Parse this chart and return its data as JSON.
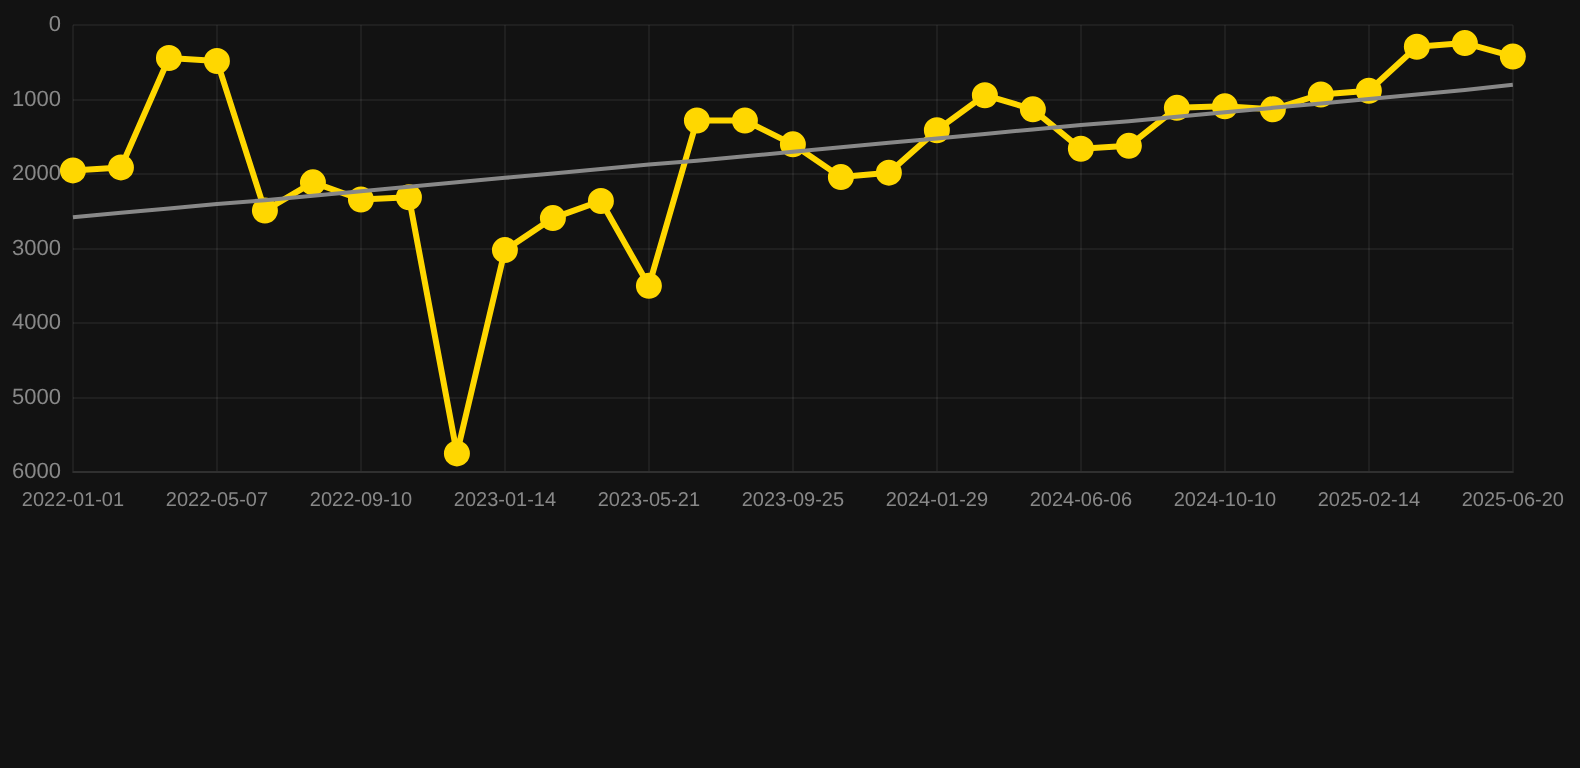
{
  "chart_data": {
    "type": "line",
    "categories": [
      "2022-01-01",
      null,
      null,
      "2022-05-07",
      null,
      null,
      "2022-09-10",
      null,
      null,
      "2023-01-14",
      null,
      null,
      "2023-05-21",
      null,
      null,
      "2023-09-25",
      null,
      null,
      "2024-01-29",
      null,
      null,
      "2024-06-06",
      null,
      null,
      "2024-10-10",
      null,
      null,
      "2025-02-14",
      null,
      null,
      "2025-06-20"
    ],
    "series": [
      {
        "color": "#ffd700",
        "marker": "circle",
        "values": [
          1950,
          1910,
          440,
          480,
          2490,
          2110,
          2340,
          2310,
          5750,
          3020,
          2590,
          2360,
          3500,
          1280,
          1280,
          1600,
          2040,
          1980,
          1410,
          940,
          1130,
          1660,
          1620,
          1110,
          1090,
          1130,
          930,
          880,
          290,
          240,
          420
        ]
      },
      {
        "type": "line",
        "color": "#888888",
        "marker": "none",
        "values": [
          2580,
          2520,
          2460,
          2400,
          2350,
          2290,
          2230,
          2170,
          2110,
          2050,
          1990,
          1930,
          1870,
          1820,
          1760,
          1700,
          1640,
          1580,
          1520,
          1460,
          1400,
          1340,
          1290,
          1230,
          1170,
          1110,
          1050,
          990,
          930,
          870,
          800
        ]
      }
    ],
    "ylim": [
      6000,
      0
    ],
    "yticks": [
      0,
      1000,
      2000,
      3000,
      4000,
      5000,
      6000
    ],
    "grid": true,
    "legend": false,
    "line_style": "solid"
  }
}
